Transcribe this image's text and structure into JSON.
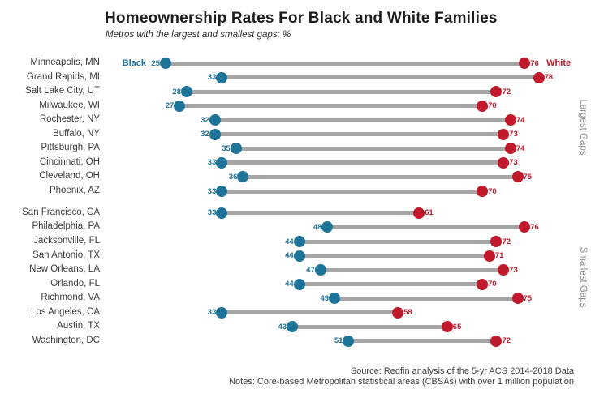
{
  "title": "Homeownership Rates For Black and White Families",
  "subtitle": "Metros with the largest and smallest gaps; %",
  "source": {
    "line1": "Source: Redfin analysis of the 5-yr ACS 2014-2018 Data",
    "line2": "Notes: Core-based Metropolitan statistical areas (CBSAs) with over 1 million population"
  },
  "colors": {
    "black_series": "#1e7399",
    "white_series": "#c0192b",
    "connector": "#a5a5a5",
    "group_label": "#8d8d8d"
  },
  "chart_data": {
    "type": "scatter",
    "variant": "dumbbell",
    "title": "Homeownership Rates For Black and White Families",
    "subtitle": "Metros with the largest and smallest gaps; %",
    "xlabel": "",
    "ylabel": "",
    "xlim": [
      25,
      78
    ],
    "grid": false,
    "legend_position": "first-row-inline",
    "categories": [
      "Minneapolis, MN",
      "Grand Rapids, MI",
      "Salt Lake City, UT",
      "Milwaukee, WI",
      "Rochester, NY",
      "Buffalo, NY",
      "Pittsburgh, PA",
      "Cincinnati, OH",
      "Cleveland, OH",
      "Phoenix, AZ",
      "San Francisco, CA",
      "Philadelphia, PA",
      "Jacksonville, FL",
      "San Antonio, TX",
      "New Orleans, LA",
      "Orlando, FL",
      "Richmond, VA",
      "Los Angeles, CA",
      "Austin, TX",
      "Washington, DC"
    ],
    "series": [
      {
        "name": "Black",
        "values": [
          25,
          33,
          28,
          27,
          32,
          32,
          35,
          33,
          36,
          33,
          33,
          48,
          44,
          44,
          47,
          44,
          49,
          33,
          43,
          51
        ]
      },
      {
        "name": "White",
        "values": [
          76,
          78,
          72,
          70,
          74,
          73,
          74,
          73,
          75,
          70,
          61,
          76,
          72,
          71,
          73,
          70,
          75,
          58,
          65,
          72
        ]
      }
    ],
    "groups": [
      {
        "label": "Largest Gaps",
        "from": 0,
        "to": 9
      },
      {
        "label": "Smallest Gaps",
        "from": 10,
        "to": 19
      }
    ]
  }
}
